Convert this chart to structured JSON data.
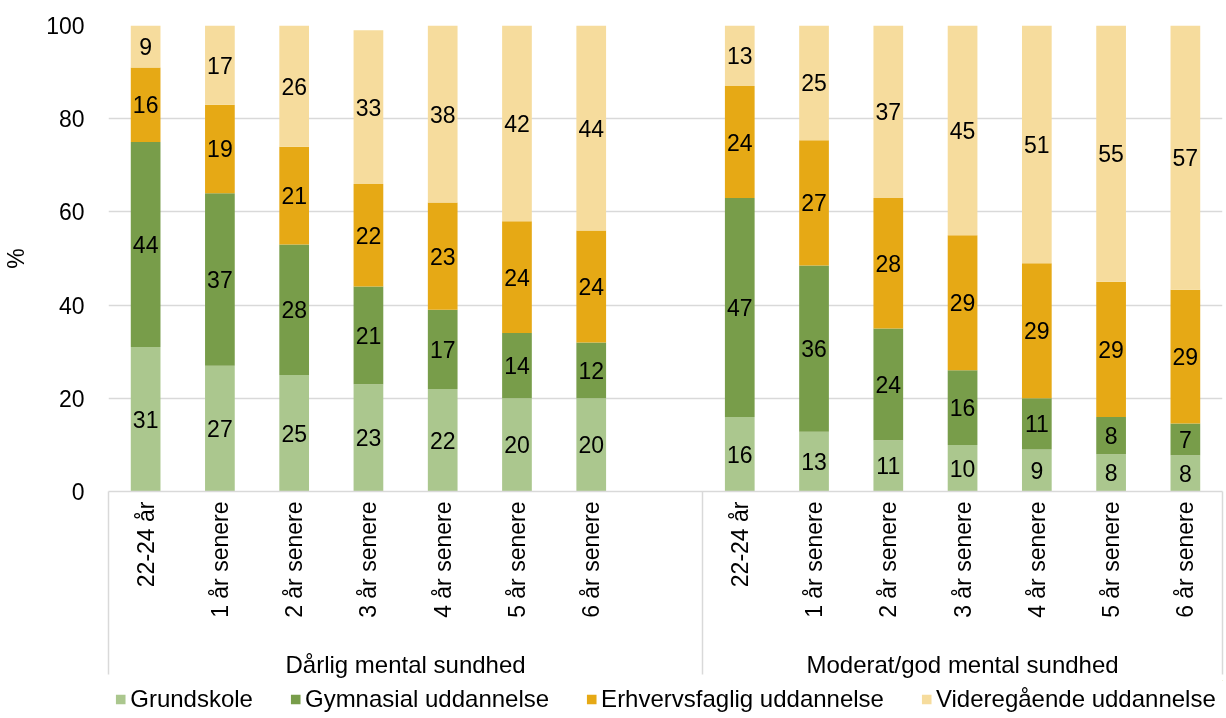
{
  "chart_data": {
    "type": "bar",
    "stacked": true,
    "categories": [
      "22-24 år",
      "1 år senere",
      "2 år senere",
      "3 år senere",
      "4 år senere",
      "5 år senere",
      "6 år senere",
      null,
      "22-24 år",
      "1 år senere",
      "2 år senere",
      "3 år senere",
      "4 år senere",
      "5 år senere",
      "6 år senere"
    ],
    "ylabel": "%",
    "ylim": [
      0,
      100
    ],
    "yticks": [
      0,
      20,
      40,
      60,
      80,
      100
    ],
    "grid": "y",
    "legend": "bottom",
    "annotations": [
      "Dårlig mental sundhed",
      "Moderat/god mental sundhed"
    ],
    "series": [
      {
        "name": "Grundskole",
        "color": "#abc78e",
        "values": [
          31,
          27,
          25,
          23,
          22,
          20,
          20,
          null,
          16,
          12.8,
          11,
          10,
          9,
          8,
          7.8
        ],
        "value_labels": [
          "31",
          "27",
          "25",
          "23",
          "22",
          "20",
          "20",
          null,
          "16",
          "13",
          "11",
          "10",
          "9",
          "8",
          "8"
        ]
      },
      {
        "name": "Gymnasial uddannelse",
        "color": "#789d4a",
        "values": [
          44,
          37,
          28,
          21,
          17,
          14,
          12,
          null,
          47,
          35.7,
          24,
          16,
          11,
          8,
          6.8
        ],
        "value_labels": [
          "44",
          "37",
          "28",
          "21",
          "17",
          "14",
          "12",
          null,
          "47",
          "36",
          "24",
          "16",
          "11",
          "8",
          "7"
        ]
      },
      {
        "name": "Erhvervsfaglig uddannelse",
        "color": "#e6a915",
        "values": [
          16,
          19,
          21,
          22,
          23,
          24,
          24,
          null,
          24,
          26.9,
          28,
          29,
          29,
          29,
          28.7
        ],
        "value_labels": [
          "16",
          "19",
          "21",
          "22",
          "23",
          "24",
          "24",
          null,
          "24",
          "27",
          "28",
          "29",
          "29",
          "29",
          "29"
        ]
      },
      {
        "name": "Videregående uddannelse",
        "color": "#f6dc9d",
        "values": [
          9,
          17,
          26,
          33,
          38,
          42,
          44,
          null,
          13,
          24.6,
          37,
          45,
          51,
          55,
          56.7
        ],
        "value_labels": [
          "9",
          "17",
          "26",
          "33",
          "38",
          "42",
          "44",
          null,
          "13",
          "25",
          "37",
          "45",
          "51",
          "55",
          "57"
        ]
      }
    ]
  }
}
